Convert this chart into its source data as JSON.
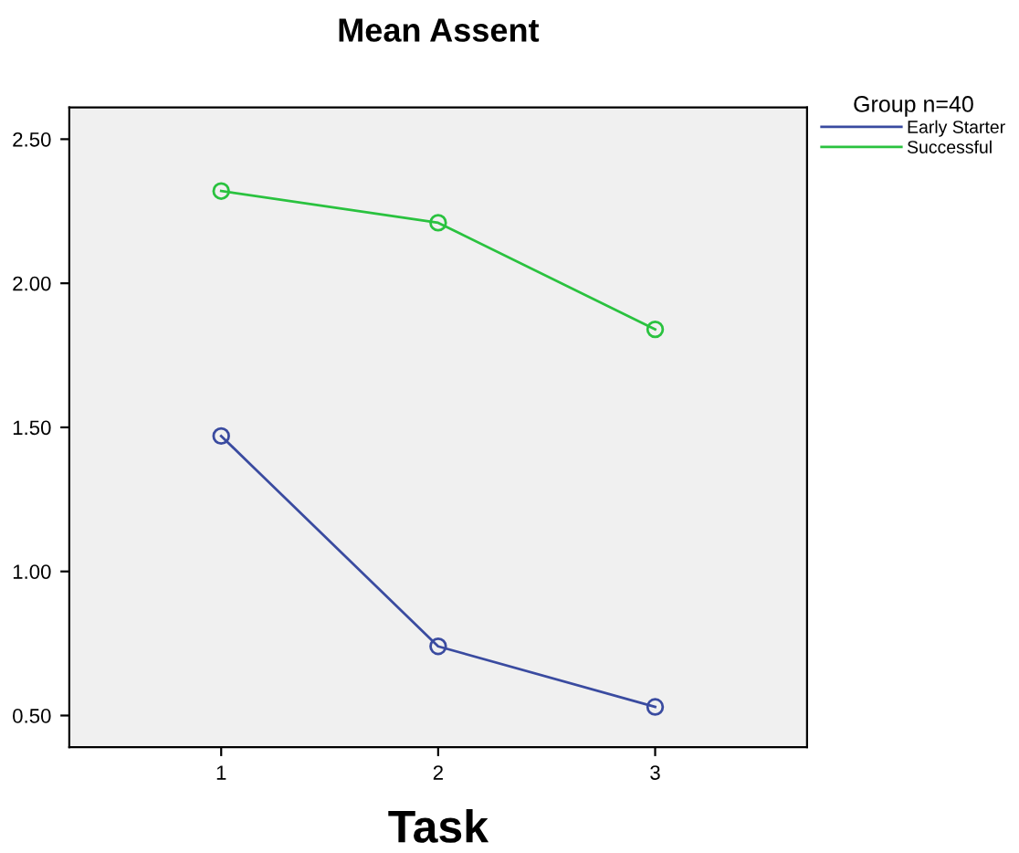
{
  "chart_data": {
    "type": "line",
    "title": "Mean Assent",
    "xlabel": "Task",
    "legend_title": "Group n=40",
    "x": [
      1,
      2,
      3
    ],
    "series": [
      {
        "name": "Early Starter",
        "color": "#3a4ba0",
        "values": [
          1.47,
          0.74,
          0.53
        ]
      },
      {
        "name": "Successful",
        "color": "#2ac23f",
        "values": [
          2.32,
          2.21,
          1.84
        ]
      }
    ],
    "xlim": [
      0.3,
      3.7
    ],
    "xticks": [
      1,
      2,
      3
    ],
    "ylim": [
      0.39,
      2.61
    ],
    "yticks": [
      {
        "value": 0.5,
        "label": "0.50"
      },
      {
        "value": 1.0,
        "label": "1.00"
      },
      {
        "value": 1.5,
        "label": "1.50"
      },
      {
        "value": 2.0,
        "label": "2.00"
      },
      {
        "value": 2.5,
        "label": "2.50"
      }
    ],
    "marker": "circle",
    "line_style": "solid",
    "grid": false,
    "legend": "top right"
  }
}
